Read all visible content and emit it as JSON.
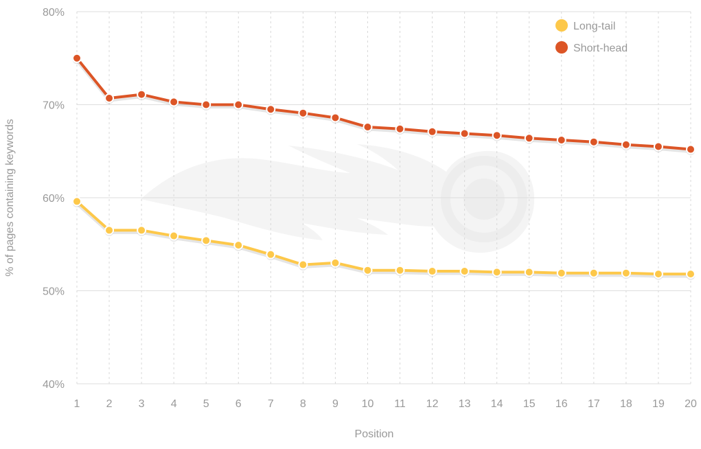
{
  "chart_data": {
    "type": "line",
    "x": [
      1,
      2,
      3,
      4,
      5,
      6,
      7,
      8,
      9,
      10,
      11,
      12,
      13,
      14,
      15,
      16,
      17,
      18,
      19,
      20
    ],
    "series": [
      {
        "name": "Long-tail",
        "color": "#fdc84a",
        "values": [
          59.6,
          56.5,
          56.5,
          55.9,
          55.4,
          54.9,
          53.9,
          52.8,
          53.0,
          52.2,
          52.2,
          52.1,
          52.1,
          52.0,
          52.0,
          51.9,
          51.9,
          51.9,
          51.8,
          51.8
        ]
      },
      {
        "name": "Short-head",
        "color": "#dc5526",
        "values": [
          75.0,
          70.7,
          71.1,
          70.3,
          70.0,
          70.0,
          69.5,
          69.1,
          68.6,
          67.6,
          67.4,
          67.1,
          66.9,
          66.7,
          66.4,
          66.2,
          66.0,
          65.7,
          65.5,
          65.2
        ]
      }
    ],
    "xlabel": "Position",
    "ylabel": "% of pages containing keywords",
    "ylim": [
      40,
      80
    ],
    "yticks": [
      "40%",
      "50%",
      "60%",
      "70%",
      "80%"
    ],
    "xticks": [
      "1",
      "2",
      "3",
      "4",
      "5",
      "6",
      "7",
      "8",
      "9",
      "10",
      "11",
      "12",
      "13",
      "14",
      "15",
      "16",
      "17",
      "18",
      "19",
      "20"
    ],
    "grid": true,
    "legend_position": "top-right",
    "watermark_icon": "flame-logo-icon"
  }
}
